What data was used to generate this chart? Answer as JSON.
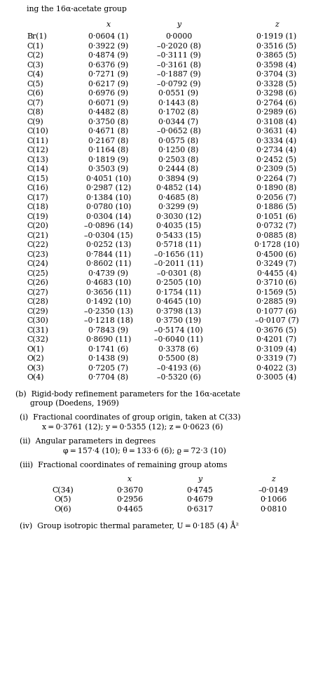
{
  "header_line": "ing the 16α-acetate group",
  "col_headers": [
    "",
    "x",
    "y",
    "z"
  ],
  "rows": [
    [
      "Br(1)",
      "0·0604 (1)",
      "0·0000",
      "0·1919 (1)"
    ],
    [
      "C(1)",
      "0·3922 (9)",
      "–0·2020 (8)",
      "0·3516 (5)"
    ],
    [
      "C(2)",
      "0·4874 (9)",
      "–0·3111 (9)",
      "0·3865 (5)"
    ],
    [
      "C(3)",
      "0·6376 (9)",
      "–0·3161 (8)",
      "0·3598 (4)"
    ],
    [
      "C(4)",
      "0·7271 (9)",
      "–0·1887 (9)",
      "0·3704 (3)"
    ],
    [
      "C(5)",
      "0·6217 (9)",
      "–0·0792 (9)",
      "0·3328 (5)"
    ],
    [
      "C(6)",
      "0·6976 (9)",
      "0·0551 (9)",
      "0·3298 (6)"
    ],
    [
      "C(7)",
      "0·6071 (9)",
      "0·1443 (8)",
      "0·2764 (6)"
    ],
    [
      "C(8)",
      "0·4482 (8)",
      "0·1702 (8)",
      "0·2989 (6)"
    ],
    [
      "C(9)",
      "0·3750 (8)",
      "0·0344 (7)",
      "0·3108 (4)"
    ],
    [
      "C(10)",
      "0·4671 (8)",
      "–0·0652 (8)",
      "0·3631 (4)"
    ],
    [
      "C(11)",
      "0·2167 (8)",
      "0·0575 (8)",
      "0·3334 (4)"
    ],
    [
      "C(12)",
      "0·1164 (8)",
      "0·1250 (8)",
      "0·2734 (4)"
    ],
    [
      "C(13)",
      "0·1819 (9)",
      "0·2503 (8)",
      "0·2452 (5)"
    ],
    [
      "C(14)",
      "0·3503 (9)",
      "0·2444 (8)",
      "0·2309 (5)"
    ],
    [
      "C(15)",
      "0·4051 (10)",
      "0·3894 (9)",
      "0·2264 (7)"
    ],
    [
      "C(16)",
      "0·2987 (12)",
      "0·4852 (14)",
      "0·1890 (8)"
    ],
    [
      "C(17)",
      "0·1384 (10)",
      "0·4685 (8)",
      "0·2056 (7)"
    ],
    [
      "C(18)",
      "0·0780 (10)",
      "0·3299 (9)",
      "0·1886 (5)"
    ],
    [
      "C(19)",
      "0·0304 (14)",
      "0·3030 (12)",
      "0·1051 (6)"
    ],
    [
      "C(20)",
      "–0·0896 (14)",
      "0·4035 (15)",
      "0·0732 (7)"
    ],
    [
      "C(21)",
      "–0·0304 (15)",
      "0·5433 (15)",
      "0·0885 (8)"
    ],
    [
      "C(22)",
      "0·0252 (13)",
      "0·5718 (11)",
      "0·1728 (10)"
    ],
    [
      "C(23)",
      "0·7844 (11)",
      "–0·1656 (11)",
      "0·4500 (6)"
    ],
    [
      "C(24)",
      "0·8602 (11)",
      "–0·2011 (11)",
      "0·3249 (7)"
    ],
    [
      "C(25)",
      "0·4739 (9)",
      "–0·0301 (8)",
      "0·4455 (4)"
    ],
    [
      "C(26)",
      "0·4683 (10)",
      "0·2505 (10)",
      "0·3710 (6)"
    ],
    [
      "C(27)",
      "0·3656 (11)",
      "0·1754 (11)",
      "0·1569 (5)"
    ],
    [
      "C(28)",
      "0·1492 (10)",
      "0·4645 (10)",
      "0·2885 (9)"
    ],
    [
      "C(29)",
      "–0·2350 (13)",
      "0·3798 (13)",
      "0·1077 (6)"
    ],
    [
      "C(30)",
      "–0·1218 (18)",
      "0·3750 (19)",
      "–0·0107 (7)"
    ],
    [
      "C(31)",
      "0·7843 (9)",
      "–0·5174 (10)",
      "0·3676 (5)"
    ],
    [
      "C(32)",
      "0·8690 (11)",
      "–0·6040 (11)",
      "0·4201 (7)"
    ],
    [
      "O(1)",
      "0·1741 (6)",
      "0·3378 (6)",
      "0·3109 (4)"
    ],
    [
      "O(2)",
      "0·1438 (9)",
      "0·5500 (8)",
      "0·3319 (7)"
    ],
    [
      "O(3)",
      "0·7205 (7)",
      "–0·4193 (6)",
      "0·4022 (3)"
    ],
    [
      "O(4)",
      "0·7704 (8)",
      "–0·5320 (6)",
      "0·3005 (4)"
    ]
  ],
  "section_b_line1": "(b)  Rigid-body refinement parameters for the 16α-acetate",
  "section_b_line2": "      group (Doedens, 1969)",
  "section_i_title": "(i)  Fractional coordinates of group origin, taken at C(33)",
  "section_i_data": "x = 0·3761 (12); y = 0·5355 (12); z = 0·0623 (6)",
  "section_ii_title": "(ii)  Angular parameters in degrees",
  "section_ii_data": "φ = 157·4 (10); θ = 133·6 (6); ϱ = 72·3 (10)",
  "section_iii_title": "(iii)  Fractional coordinates of remaining group atoms",
  "sub_col_headers": [
    "",
    "x",
    "y",
    "z"
  ],
  "sub_rows": [
    [
      "C(34)",
      "0·3670",
      "0·4745",
      "–0·0149"
    ],
    [
      "O(5)",
      "0·2956",
      "0·4679",
      "0·1066"
    ],
    [
      "O(6)",
      "0·4465",
      "0·6317",
      "0·0810"
    ]
  ],
  "section_iv_title": "(iv)  Group isotropic thermal parameter, U = 0·185 (4) Å²"
}
